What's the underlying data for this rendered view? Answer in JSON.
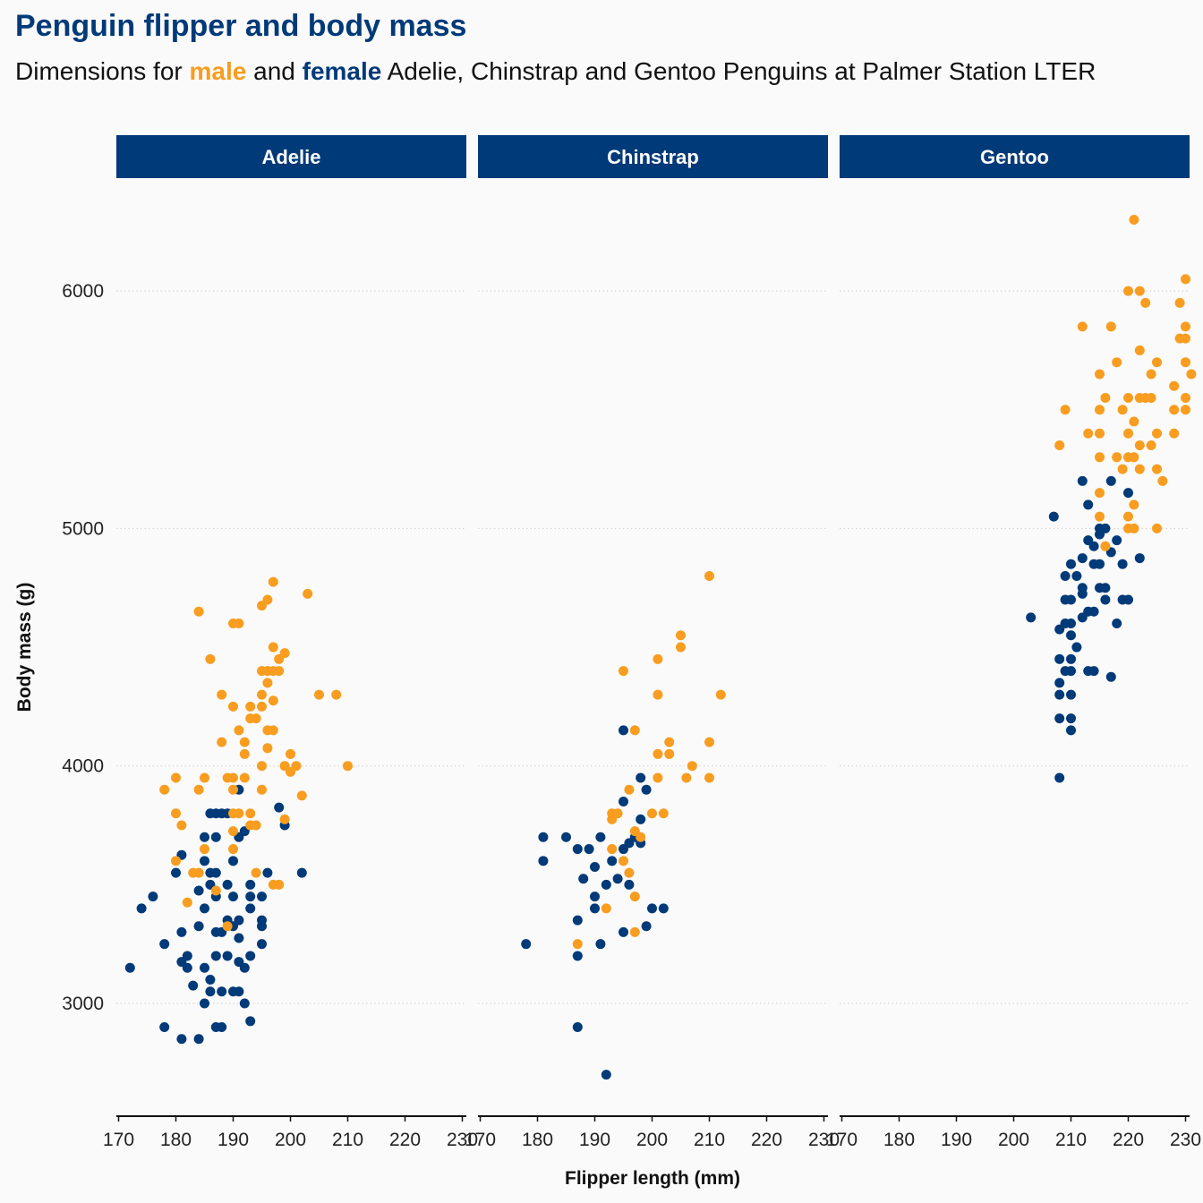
{
  "title": "Penguin flipper and body mass",
  "subtitle": {
    "prefix": "Dimensions for ",
    "male_word": "male",
    "middle": " and ",
    "female_word": "female",
    "suffix": " Adelie, Chinstrap and Gentoo Penguins at Palmer Station LTER"
  },
  "colors": {
    "male": "#f89d1f",
    "female": "#003a78",
    "strip": "#003a78",
    "background": "#fafafa",
    "grid": "#cfcfcf"
  },
  "chart_data": {
    "type": "scatter",
    "title": "Penguin flipper and body mass",
    "xlabel": "Flipper length (mm)",
    "ylabel": "Body mass (g)",
    "xlim": [
      170,
      230
    ],
    "ylim": [
      2600,
      6400
    ],
    "x_ticks": [
      170,
      180,
      190,
      200,
      210,
      220,
      230
    ],
    "y_ticks": [
      3000,
      4000,
      5000,
      6000
    ],
    "grid": "horizontal dotted",
    "legend": "none",
    "facets": [
      {
        "name": "Adelie",
        "male": [
          [
            178,
            3900
          ],
          [
            180,
            3950
          ],
          [
            180,
            3800
          ],
          [
            180,
            3600
          ],
          [
            181,
            3750
          ],
          [
            182,
            3425
          ],
          [
            183,
            3550
          ],
          [
            184,
            3550
          ],
          [
            184,
            3900
          ],
          [
            184,
            4650
          ],
          [
            185,
            3950
          ],
          [
            185,
            3650
          ],
          [
            186,
            4450
          ],
          [
            187,
            3475
          ],
          [
            188,
            4300
          ],
          [
            188,
            4100
          ],
          [
            189,
            3950
          ],
          [
            189,
            3325
          ],
          [
            190,
            4600
          ],
          [
            190,
            4250
          ],
          [
            190,
            3900
          ],
          [
            190,
            3950
          ],
          [
            190,
            3800
          ],
          [
            190,
            3725
          ],
          [
            190,
            3650
          ],
          [
            191,
            4600
          ],
          [
            191,
            4150
          ],
          [
            191,
            3800
          ],
          [
            192,
            4100
          ],
          [
            192,
            4050
          ],
          [
            192,
            3950
          ],
          [
            193,
            4250
          ],
          [
            193,
            4200
          ],
          [
            193,
            3800
          ],
          [
            193,
            3750
          ],
          [
            194,
            4200
          ],
          [
            194,
            3750
          ],
          [
            194,
            3550
          ],
          [
            195,
            4675
          ],
          [
            195,
            4400
          ],
          [
            195,
            4300
          ],
          [
            195,
            4250
          ],
          [
            195,
            4000
          ],
          [
            195,
            3900
          ],
          [
            196,
            4700
          ],
          [
            196,
            4400
          ],
          [
            196,
            4350
          ],
          [
            196,
            4150
          ],
          [
            196,
            4075
          ],
          [
            197,
            4775
          ],
          [
            197,
            4500
          ],
          [
            197,
            4400
          ],
          [
            197,
            4275
          ],
          [
            197,
            4150
          ],
          [
            197,
            3500
          ],
          [
            198,
            4450
          ],
          [
            198,
            4400
          ],
          [
            198,
            3500
          ],
          [
            199,
            4475
          ],
          [
            199,
            4000
          ],
          [
            199,
            3775
          ],
          [
            200,
            4050
          ],
          [
            200,
            3975
          ],
          [
            201,
            4000
          ],
          [
            202,
            3875
          ],
          [
            203,
            4725
          ],
          [
            205,
            4300
          ],
          [
            208,
            4300
          ],
          [
            210,
            4000
          ]
        ],
        "female": [
          [
            172,
            3150
          ],
          [
            174,
            3400
          ],
          [
            176,
            3450
          ],
          [
            178,
            3250
          ],
          [
            178,
            2900
          ],
          [
            180,
            3550
          ],
          [
            181,
            3625
          ],
          [
            181,
            3300
          ],
          [
            181,
            3175
          ],
          [
            181,
            2850
          ],
          [
            182,
            3200
          ],
          [
            182,
            3150
          ],
          [
            183,
            3075
          ],
          [
            184,
            3475
          ],
          [
            184,
            3325
          ],
          [
            184,
            2850
          ],
          [
            185,
            3700
          ],
          [
            185,
            3600
          ],
          [
            185,
            3400
          ],
          [
            185,
            3150
          ],
          [
            185,
            3000
          ],
          [
            186,
            3800
          ],
          [
            186,
            3550
          ],
          [
            186,
            3500
          ],
          [
            186,
            3100
          ],
          [
            186,
            3050
          ],
          [
            187,
            3800
          ],
          [
            187,
            3700
          ],
          [
            187,
            3550
          ],
          [
            187,
            3450
          ],
          [
            187,
            3300
          ],
          [
            187,
            3200
          ],
          [
            187,
            2900
          ],
          [
            188,
            3800
          ],
          [
            188,
            3300
          ],
          [
            188,
            3050
          ],
          [
            188,
            2900
          ],
          [
            189,
            3800
          ],
          [
            189,
            3500
          ],
          [
            189,
            3350
          ],
          [
            189,
            3200
          ],
          [
            190,
            3600
          ],
          [
            190,
            3450
          ],
          [
            190,
            3325
          ],
          [
            190,
            3050
          ],
          [
            191,
            3900
          ],
          [
            191,
            3700
          ],
          [
            191,
            3350
          ],
          [
            191,
            3275
          ],
          [
            191,
            3175
          ],
          [
            191,
            3050
          ],
          [
            192,
            3725
          ],
          [
            192,
            3150
          ],
          [
            192,
            3000
          ],
          [
            193,
            3500
          ],
          [
            193,
            3450
          ],
          [
            193,
            3400
          ],
          [
            193,
            3200
          ],
          [
            193,
            2925
          ],
          [
            195,
            3450
          ],
          [
            195,
            3350
          ],
          [
            195,
            3325
          ],
          [
            195,
            3250
          ],
          [
            196,
            3550
          ],
          [
            198,
            3825
          ],
          [
            199,
            3750
          ],
          [
            202,
            3550
          ]
        ]
      },
      {
        "name": "Chinstrap",
        "male": [
          [
            187,
            3250
          ],
          [
            192,
            3400
          ],
          [
            193,
            3800
          ],
          [
            193,
            3775
          ],
          [
            193,
            3650
          ],
          [
            194,
            3800
          ],
          [
            195,
            4400
          ],
          [
            195,
            3600
          ],
          [
            196,
            3900
          ],
          [
            196,
            3550
          ],
          [
            197,
            4150
          ],
          [
            197,
            3725
          ],
          [
            197,
            3450
          ],
          [
            197,
            3300
          ],
          [
            198,
            3700
          ],
          [
            200,
            3800
          ],
          [
            201,
            4450
          ],
          [
            201,
            4300
          ],
          [
            201,
            4050
          ],
          [
            201,
            3950
          ],
          [
            202,
            3800
          ],
          [
            203,
            4100
          ],
          [
            203,
            4050
          ],
          [
            205,
            4550
          ],
          [
            205,
            4500
          ],
          [
            206,
            3950
          ],
          [
            207,
            4000
          ],
          [
            210,
            4800
          ],
          [
            210,
            4100
          ],
          [
            210,
            3950
          ],
          [
            212,
            4300
          ]
        ],
        "female": [
          [
            178,
            3250
          ],
          [
            181,
            3700
          ],
          [
            181,
            3600
          ],
          [
            185,
            3700
          ],
          [
            187,
            3650
          ],
          [
            187,
            3350
          ],
          [
            187,
            3200
          ],
          [
            187,
            2900
          ],
          [
            188,
            3525
          ],
          [
            189,
            3650
          ],
          [
            190,
            3575
          ],
          [
            190,
            3450
          ],
          [
            190,
            3400
          ],
          [
            191,
            3700
          ],
          [
            191,
            3250
          ],
          [
            192,
            3500
          ],
          [
            192,
            2700
          ],
          [
            193,
            3600
          ],
          [
            194,
            3525
          ],
          [
            195,
            4150
          ],
          [
            195,
            3850
          ],
          [
            195,
            3650
          ],
          [
            195,
            3300
          ],
          [
            196,
            3675
          ],
          [
            196,
            3500
          ],
          [
            197,
            3700
          ],
          [
            198,
            3950
          ],
          [
            198,
            3775
          ],
          [
            198,
            3675
          ],
          [
            199,
            3900
          ],
          [
            199,
            3325
          ],
          [
            200,
            3400
          ],
          [
            202,
            3400
          ]
        ]
      },
      {
        "name": "Gentoo",
        "male": [
          [
            208,
            5350
          ],
          [
            209,
            5500
          ],
          [
            212,
            5850
          ],
          [
            213,
            5400
          ],
          [
            215,
            5650
          ],
          [
            215,
            5500
          ],
          [
            215,
            5400
          ],
          [
            215,
            5300
          ],
          [
            215,
            5150
          ],
          [
            215,
            5050
          ],
          [
            216,
            5550
          ],
          [
            216,
            4925
          ],
          [
            217,
            5850
          ],
          [
            218,
            5700
          ],
          [
            218,
            5300
          ],
          [
            219,
            5500
          ],
          [
            219,
            5250
          ],
          [
            220,
            6000
          ],
          [
            220,
            5550
          ],
          [
            220,
            5400
          ],
          [
            220,
            5300
          ],
          [
            220,
            5050
          ],
          [
            220,
            5000
          ],
          [
            221,
            6300
          ],
          [
            221,
            5450
          ],
          [
            221,
            5300
          ],
          [
            221,
            5100
          ],
          [
            221,
            5000
          ],
          [
            222,
            6000
          ],
          [
            222,
            5750
          ],
          [
            222,
            5550
          ],
          [
            222,
            5350
          ],
          [
            222,
            5250
          ],
          [
            223,
            5950
          ],
          [
            223,
            5550
          ],
          [
            224,
            5650
          ],
          [
            224,
            5550
          ],
          [
            224,
            5350
          ],
          [
            225,
            5700
          ],
          [
            225,
            5400
          ],
          [
            225,
            5250
          ],
          [
            225,
            5000
          ],
          [
            226,
            5200
          ],
          [
            228,
            5600
          ],
          [
            228,
            5500
          ],
          [
            228,
            5400
          ],
          [
            229,
            5950
          ],
          [
            229,
            5800
          ],
          [
            230,
            6050
          ],
          [
            230,
            5850
          ],
          [
            230,
            5800
          ],
          [
            230,
            5700
          ],
          [
            230,
            5550
          ],
          [
            230,
            5500
          ],
          [
            231,
            5650
          ]
        ],
        "female": [
          [
            203,
            4625
          ],
          [
            207,
            5050
          ],
          [
            208,
            4575
          ],
          [
            208,
            4450
          ],
          [
            208,
            4350
          ],
          [
            208,
            4300
          ],
          [
            208,
            4200
          ],
          [
            208,
            3950
          ],
          [
            209,
            4800
          ],
          [
            209,
            4700
          ],
          [
            209,
            4600
          ],
          [
            209,
            4400
          ],
          [
            210,
            4850
          ],
          [
            210,
            4700
          ],
          [
            210,
            4600
          ],
          [
            210,
            4550
          ],
          [
            210,
            4450
          ],
          [
            210,
            4400
          ],
          [
            210,
            4300
          ],
          [
            210,
            4200
          ],
          [
            210,
            4150
          ],
          [
            211,
            4800
          ],
          [
            211,
            4500
          ],
          [
            212,
            5200
          ],
          [
            212,
            4875
          ],
          [
            212,
            4750
          ],
          [
            212,
            4725
          ],
          [
            212,
            4625
          ],
          [
            213,
            5100
          ],
          [
            213,
            4950
          ],
          [
            213,
            4650
          ],
          [
            213,
            4400
          ],
          [
            214,
            4925
          ],
          [
            214,
            4850
          ],
          [
            214,
            4650
          ],
          [
            214,
            4400
          ],
          [
            215,
            5000
          ],
          [
            215,
            4975
          ],
          [
            215,
            4850
          ],
          [
            215,
            4750
          ],
          [
            216,
            5000
          ],
          [
            216,
            4750
          ],
          [
            216,
            4700
          ],
          [
            217,
            5200
          ],
          [
            217,
            4900
          ],
          [
            217,
            4375
          ],
          [
            218,
            4950
          ],
          [
            218,
            4600
          ],
          [
            219,
            4850
          ],
          [
            219,
            4700
          ],
          [
            220,
            5150
          ],
          [
            220,
            4700
          ],
          [
            222,
            4875
          ]
        ]
      }
    ]
  }
}
